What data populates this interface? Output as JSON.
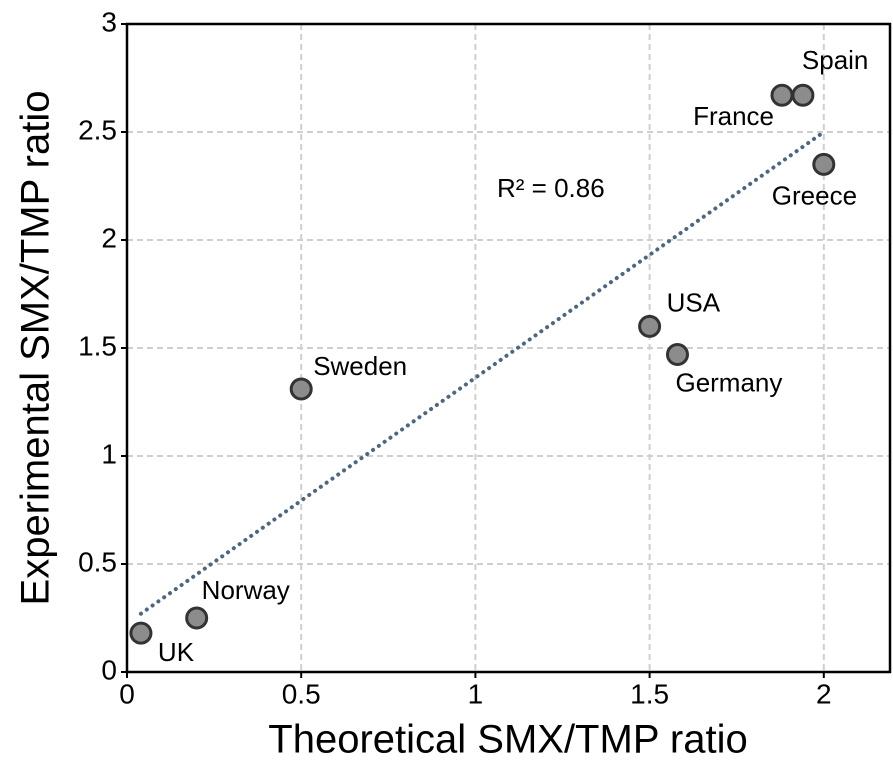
{
  "chart_data": {
    "type": "scatter",
    "xlabel": "Theoretical SMX/TMP ratio",
    "ylabel": "Experimental SMX/TMP ratio",
    "labels": [
      "UK",
      "Norway",
      "Sweden",
      "USA",
      "Germany",
      "France",
      "Spain",
      "Greece"
    ],
    "x": [
      0.04,
      0.2,
      0.5,
      1.5,
      1.58,
      1.88,
      1.94,
      2.0
    ],
    "y": [
      0.18,
      0.25,
      1.31,
      1.6,
      1.47,
      2.67,
      2.67,
      2.35
    ],
    "color": "#8c8c8c",
    "edgecolor": "#333333",
    "trendline": {
      "x": [
        0.04,
        2.0
      ],
      "y": [
        0.27,
        2.5
      ],
      "color": "#4f6680"
    },
    "annotation": "R² = 0.86",
    "xlim": [
      0,
      2.19
    ],
    "ylim": [
      0,
      3
    ],
    "xticks": [
      0,
      0.5,
      1,
      1.5,
      2
    ],
    "yticks": [
      0,
      0.5,
      1,
      1.5,
      2,
      2.5,
      3
    ],
    "grid": true
  }
}
